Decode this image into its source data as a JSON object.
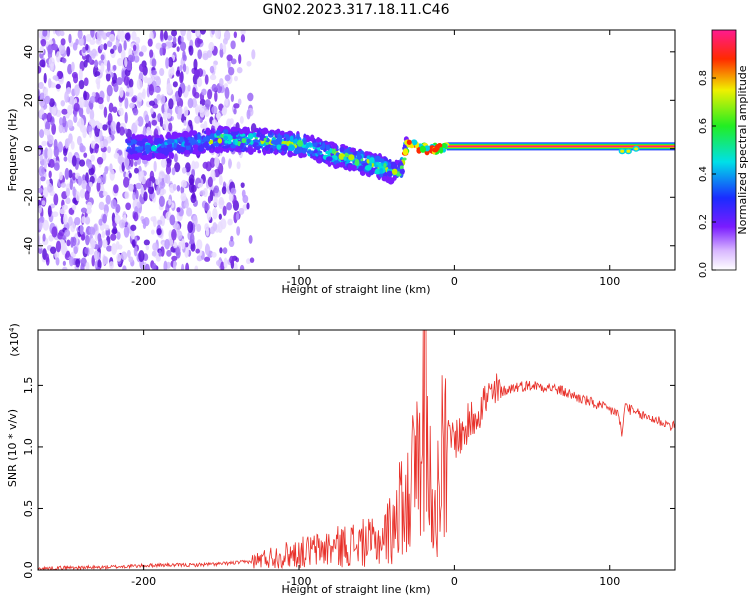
{
  "title": "GN02.2023.317.18.11.C46",
  "colors": {
    "snr_line": "#e8312a",
    "frame": "#000000"
  },
  "chart_data": [
    {
      "type": "heatmap",
      "xlabel": "Height of straight line (km)",
      "ylabel": "Frequency (Hz)",
      "xlim": [
        -268,
        142
      ],
      "ylim": [
        -50,
        49
      ],
      "x_ticks": [
        -200,
        -100,
        0,
        100
      ],
      "y_ticks": [
        -40,
        -20,
        0,
        20,
        40
      ],
      "colorbar": {
        "label": "Normalized spectral amplitude",
        "range": [
          0,
          1
        ],
        "ticks": [
          "0.0",
          "0.2",
          "0.4",
          "0.6",
          "0.8"
        ],
        "colormap": "rainbow (white-violet-blue-cyan-green-yellow-red-magenta)"
      },
      "features": {
        "ridge_frequency_hz": [
          [
            -200,
            0
          ],
          [
            -150,
            4
          ],
          [
            -120,
            3
          ],
          [
            -100,
            2
          ],
          [
            -80,
            -2
          ],
          [
            -60,
            -5
          ],
          [
            -45,
            -8
          ],
          [
            -35,
            -10
          ],
          [
            -30,
            2
          ],
          [
            -20,
            0
          ],
          [
            0,
            1
          ],
          [
            50,
            1
          ],
          [
            100,
            1
          ],
          [
            110,
            0
          ],
          [
            142,
            1
          ]
        ],
        "noise_region_x": [
          -268,
          -135
        ]
      }
    },
    {
      "type": "line",
      "xlabel": "Height of straight line (km)",
      "ylabel": "SNR (10 * v/v)",
      "y_scale_label": "(x10",
      "y_scale_exp": "4",
      "xlim": [
        -268,
        142
      ],
      "ylim": [
        0,
        1.95
      ],
      "x_ticks": [
        -200,
        -100,
        0,
        100
      ],
      "y_ticks": [
        "0.0",
        "0.5",
        "1.0",
        "1.5"
      ],
      "series": [
        {
          "values_x": [
            -268,
            -250,
            -230,
            -210,
            -190,
            -170,
            -150,
            -130,
            -120,
            -110,
            -100,
            -90,
            -80,
            -70,
            -60,
            -50,
            -45,
            -40,
            -35,
            -30,
            -25,
            -22,
            -20,
            -18,
            -15,
            -12,
            -10,
            -8,
            -5,
            0,
            5,
            10,
            15,
            20,
            25,
            30,
            40,
            50,
            60,
            70,
            80,
            90,
            100,
            105,
            108,
            110,
            115,
            120,
            130,
            142
          ],
          "values_y": [
            0.01,
            0.02,
            0.02,
            0.03,
            0.04,
            0.04,
            0.05,
            0.07,
            0.1,
            0.12,
            0.14,
            0.16,
            0.18,
            0.2,
            0.22,
            0.22,
            0.28,
            0.35,
            0.5,
            0.6,
            0.8,
            1.2,
            1.5,
            1.1,
            0.7,
            0.5,
            0.6,
            1.0,
            1.05,
            1.08,
            1.1,
            1.2,
            1.3,
            1.38,
            1.42,
            1.45,
            1.49,
            1.5,
            1.49,
            1.45,
            1.4,
            1.35,
            1.3,
            1.28,
            1.1,
            1.35,
            1.28,
            1.26,
            1.22,
            1.16
          ]
        }
      ]
    }
  ]
}
